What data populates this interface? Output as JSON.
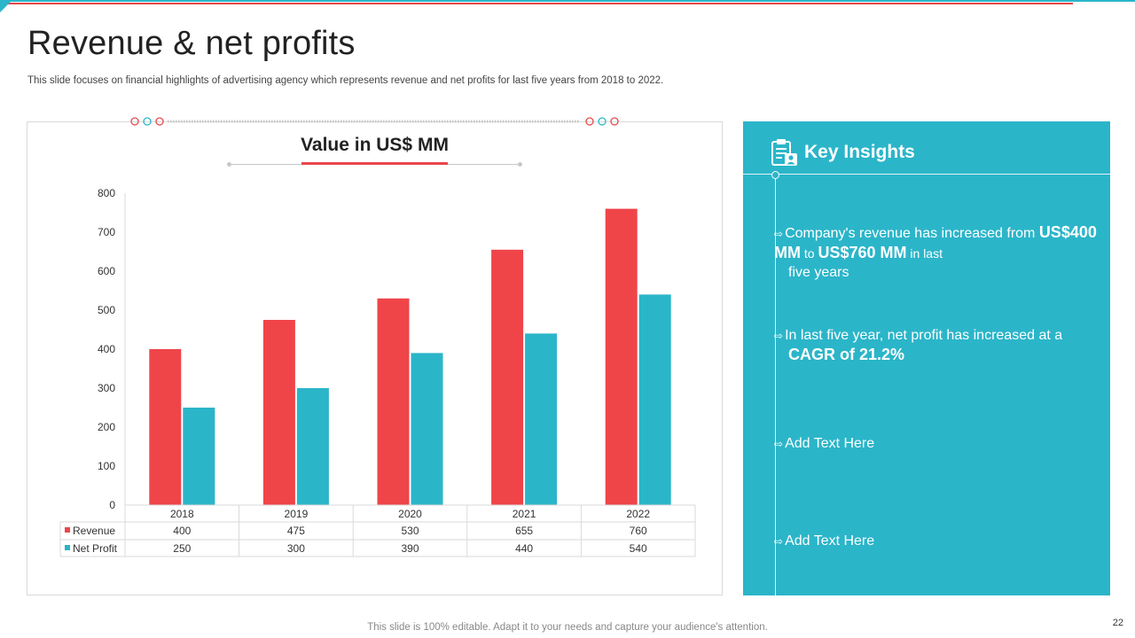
{
  "slide": {
    "title": "Revenue & net profits",
    "subtitle": "This slide focuses on financial highlights of advertising agency which represents revenue and net profits for  last five years from 2018 to 2022.",
    "footer": "This slide is 100% editable. Adapt it to your needs and capture your audience's attention.",
    "page_number": "22"
  },
  "colors": {
    "red": "#ef4549",
    "teal": "#2bb5c9",
    "grid": "#d9d9d9",
    "text": "#333333"
  },
  "chart_data": {
    "type": "bar",
    "title": "Value in US$ MM",
    "categories": [
      "2018",
      "2019",
      "2020",
      "2021",
      "2022"
    ],
    "series": [
      {
        "name": "Revenue",
        "values": [
          400,
          475,
          530,
          655,
          760
        ],
        "color": "#ef4549"
      },
      {
        "name": "Net Profit",
        "values": [
          250,
          300,
          390,
          440,
          540
        ],
        "color": "#2bb5c9"
      }
    ],
    "y_ticks": [
      "0",
      "100",
      "200",
      "300",
      "400",
      "500",
      "600",
      "700",
      "800"
    ],
    "ylim": [
      0,
      800
    ],
    "data_table": true,
    "grid": false
  },
  "insights": {
    "title": "Key Insights",
    "item1": {
      "pre": "Company's revenue  has increased from ",
      "b1": "US$400 MM",
      "mid": " to ",
      "b2": "US$760 MM",
      "post": " in last",
      "line2": "five years"
    },
    "item2": {
      "pre": "In  last five year,  net profit has increased at a",
      "b1": "CAGR",
      "post": " of 21.2%"
    },
    "item3": "Add Text Here",
    "item4": "Add Text Here"
  }
}
